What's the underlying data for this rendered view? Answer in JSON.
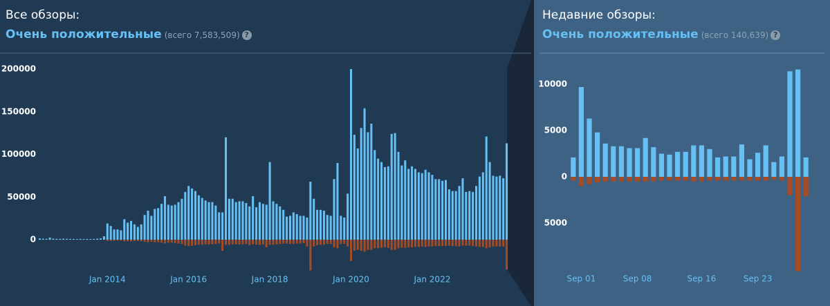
{
  "panels": [
    {
      "heading": "Все обзоры:",
      "rating": "Очень положительные",
      "total": "(всего 7,583,509)",
      "help": "?"
    },
    {
      "heading": "Недавние обзоры:",
      "rating": "Очень положительные",
      "total": "(всего 140,639)",
      "help": "?"
    }
  ],
  "chart_data": [
    {
      "type": "bar",
      "categories": [
        null,
        null,
        null,
        null,
        null,
        null,
        null,
        null,
        null,
        null,
        null,
        null,
        null,
        null,
        null,
        null,
        null,
        null,
        null,
        null,
        "Jan 2014",
        null,
        null,
        null,
        null,
        null,
        null,
        null,
        null,
        null,
        null,
        null,
        null,
        null,
        null,
        null,
        null,
        null,
        null,
        null,
        null,
        null,
        null,
        null,
        "Jan 2016",
        null,
        null,
        null,
        null,
        null,
        null,
        null,
        null,
        null,
        null,
        null,
        null,
        null,
        null,
        null,
        null,
        null,
        null,
        null,
        null,
        null,
        null,
        null,
        "Jan 2018",
        null,
        null,
        null,
        null,
        null,
        null,
        null,
        null,
        null,
        null,
        null,
        null,
        null,
        null,
        null,
        null,
        null,
        null,
        null,
        null,
        null,
        null,
        null,
        "Jan 2020",
        null,
        null,
        null,
        null,
        null,
        null,
        null,
        null,
        null,
        null,
        null,
        null,
        null,
        null,
        null,
        null,
        null,
        null,
        null,
        null,
        null,
        null,
        null,
        "Jan 2022",
        null,
        null,
        null,
        null,
        null,
        null,
        null,
        null,
        null,
        null,
        null,
        null,
        null,
        null,
        null,
        null,
        null,
        null,
        null,
        null,
        null,
        null
      ],
      "series": [
        {
          "color": "#66c0f4",
          "values": [
            1500,
            1200,
            1000,
            2500,
            1200,
            1000,
            1000,
            1200,
            1000,
            900,
            900,
            800,
            900,
            800,
            900,
            800,
            900,
            1200,
            1500,
            4000,
            19000,
            16000,
            12000,
            12000,
            11000,
            24000,
            20000,
            22000,
            18000,
            15000,
            18000,
            29000,
            34000,
            28000,
            36000,
            37000,
            42000,
            51000,
            41000,
            40000,
            41000,
            44000,
            48000,
            56000,
            63000,
            60000,
            57000,
            52000,
            49000,
            46000,
            44000,
            44000,
            40000,
            32000,
            32000,
            120000,
            48000,
            48000,
            44000,
            45000,
            45000,
            43000,
            39000,
            51000,
            38000,
            44000,
            42000,
            41000,
            91000,
            45000,
            42000,
            39000,
            35000,
            27000,
            28000,
            32000,
            30000,
            28000,
            28000,
            26000,
            68000,
            48000,
            35000,
            35000,
            34000,
            29000,
            28000,
            71000,
            90000,
            28000,
            26000,
            54000,
            200000,
            123000,
            107000,
            131000,
            154000,
            126000,
            136000,
            105000,
            95000,
            91000,
            85000,
            86000,
            124000,
            125000,
            103000,
            87000,
            93000,
            83000,
            86000,
            83000,
            79000,
            78000,
            82000,
            79000,
            76000,
            71000,
            71000,
            69000,
            70000,
            59000,
            57000,
            57000,
            63000,
            72000,
            56000,
            57000,
            56000,
            63000,
            74000,
            79000,
            121000,
            91000,
            75000,
            74000,
            75000,
            72000,
            113000
          ]
        },
        {
          "color": "#a34c25",
          "values": [
            -200,
            -100,
            -100,
            -300,
            -100,
            -100,
            -100,
            -100,
            -100,
            -100,
            -100,
            -100,
            -100,
            -100,
            -100,
            -100,
            -100,
            -100,
            -200,
            -300,
            -1500,
            -1500,
            -1200,
            -1000,
            -1000,
            -2000,
            -1800,
            -2000,
            -1800,
            -1500,
            -1800,
            -2500,
            -3000,
            -2500,
            -3000,
            -3000,
            -3500,
            -4500,
            -3500,
            -3500,
            -4000,
            -4500,
            -5000,
            -7000,
            -7500,
            -7000,
            -6500,
            -6000,
            -6000,
            -5500,
            -5500,
            -5500,
            -5000,
            -4500,
            -13000,
            -6000,
            -6000,
            -5500,
            -5500,
            -5500,
            -5500,
            -5000,
            -6500,
            -5500,
            -6000,
            -6000,
            -5500,
            -9000,
            -6000,
            -6000,
            -5500,
            -5000,
            -4500,
            -4500,
            -5000,
            -5000,
            -4500,
            -4500,
            -4000,
            -8000,
            -36000,
            -8000,
            -6500,
            -6000,
            -6000,
            -5000,
            -5000,
            -9000,
            -10000,
            -5000,
            -5000,
            -8000,
            -25000,
            -13000,
            -12000,
            -13000,
            -14000,
            -12000,
            -12000,
            -10000,
            -10000,
            -9500,
            -9000,
            -9500,
            -12000,
            -12000,
            -10000,
            -9500,
            -9500,
            -9000,
            -9000,
            -8500,
            -8500,
            -8000,
            -8500,
            -8000,
            -8000,
            -7500,
            -7500,
            -7500,
            -7500,
            -7000,
            -7500,
            -7500,
            -8000,
            -7000,
            -7000,
            -7000,
            -7500,
            -8000,
            -8500,
            -8500,
            -10000,
            -9000,
            -8000,
            -8000,
            -8000,
            -8000,
            -35000
          ]
        }
      ],
      "ylim": [
        -40000,
        210000
      ],
      "yticks": [
        0,
        50000,
        100000,
        150000,
        200000
      ],
      "grid": false
    },
    {
      "type": "bar",
      "categories": [
        null,
        "Sep 01",
        null,
        null,
        null,
        null,
        null,
        null,
        "Sep 08",
        null,
        null,
        null,
        null,
        null,
        null,
        null,
        "Sep 16",
        null,
        null,
        null,
        null,
        null,
        null,
        "Sep 23",
        null,
        null,
        null,
        null,
        null,
        null
      ],
      "series": [
        {
          "color": "#66c0f4",
          "values": [
            2100,
            9700,
            6300,
            4800,
            3600,
            3300,
            3300,
            3100,
            3100,
            4200,
            3200,
            2500,
            2400,
            2700,
            2700,
            3400,
            3400,
            3000,
            2100,
            2200,
            2200,
            3500,
            1900,
            2600,
            3400,
            1600,
            2200,
            11400,
            11600,
            2100
          ]
        },
        {
          "color": "#a34c25",
          "values": [
            -400,
            -1000,
            -800,
            -600,
            -500,
            -500,
            -500,
            -500,
            -500,
            -500,
            -500,
            -400,
            -400,
            -400,
            -400,
            -500,
            -500,
            -400,
            -400,
            -400,
            -400,
            -400,
            -400,
            -400,
            -400,
            -300,
            -400,
            -2000,
            -10200,
            -2100
          ]
        }
      ],
      "ylim": [
        -11000,
        12000
      ],
      "yticks": [
        {
          "value": -5000,
          "label": "5000"
        },
        0,
        5000,
        10000
      ],
      "grid": false
    }
  ]
}
